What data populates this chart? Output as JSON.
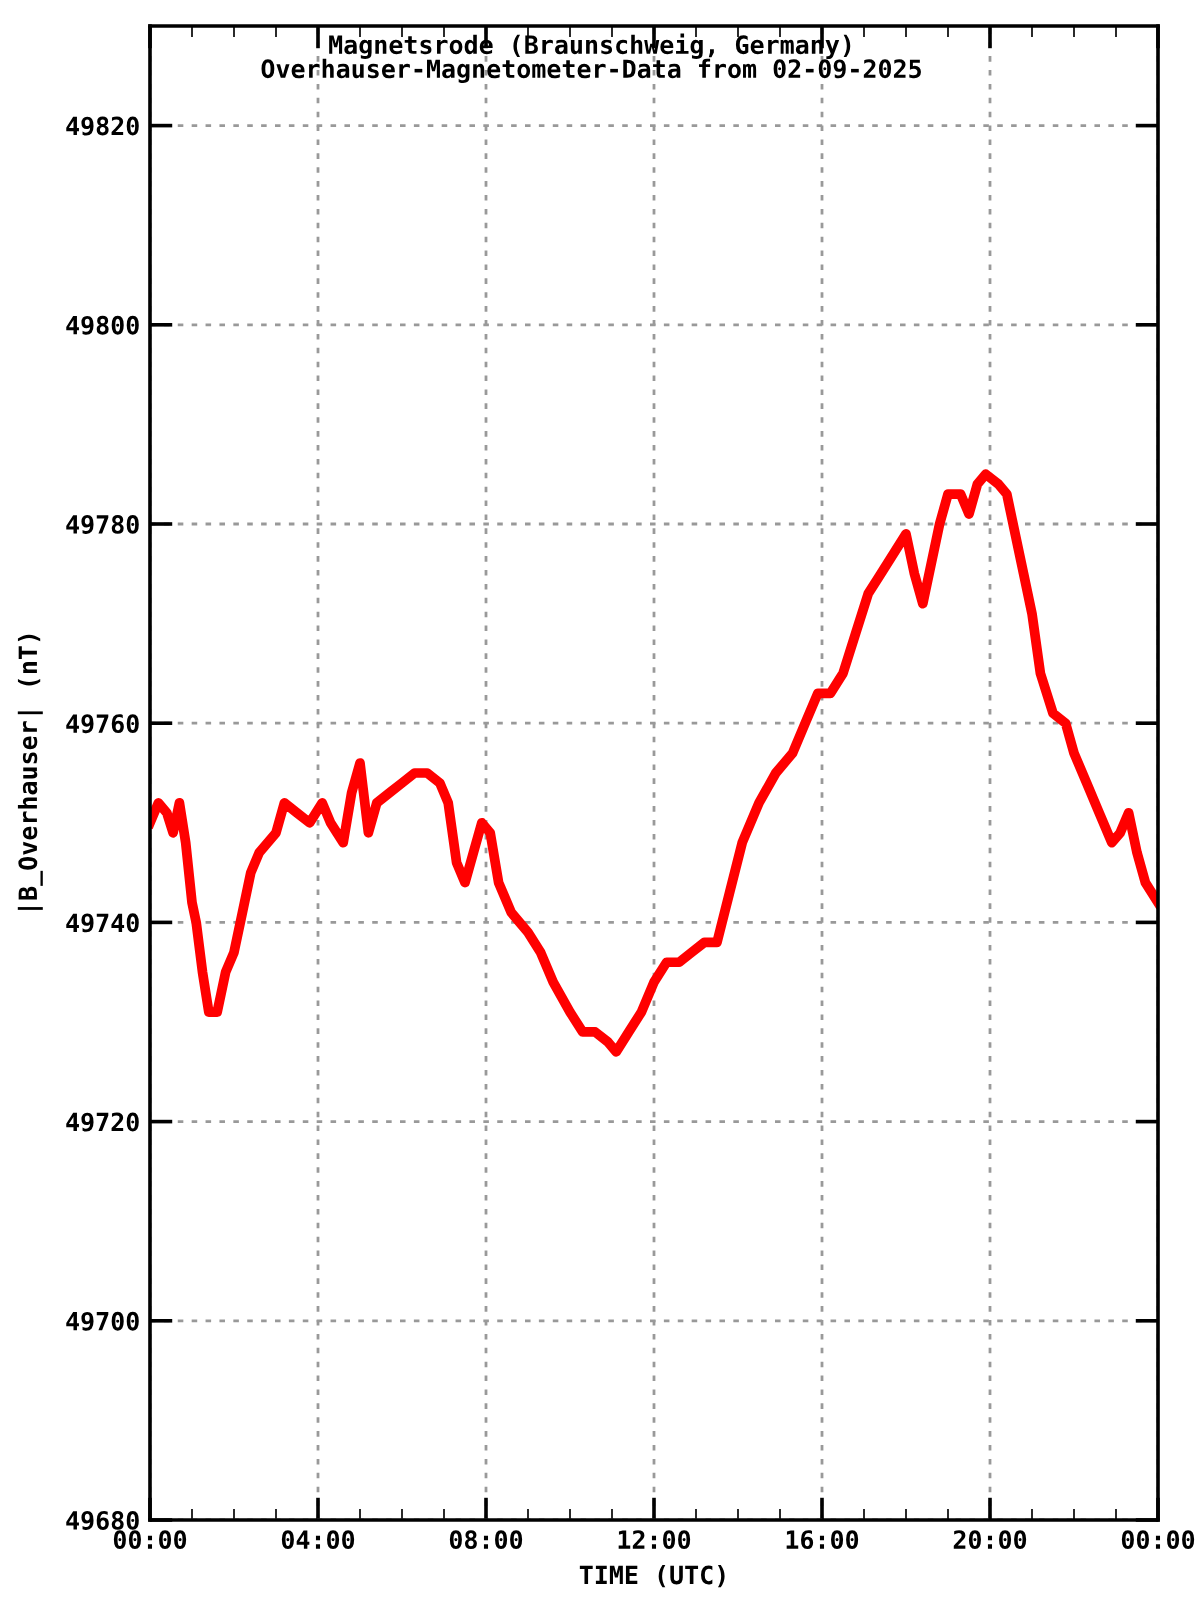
{
  "chart_data": {
    "type": "line",
    "title": "Magnetsrode (Braunschweig, Germany)",
    "subtitle": "Overhauser-Magnetometer-Data from 02-09-2025",
    "xlabel": "TIME (UTC)",
    "ylabel": "|B_Overhauser| (nT)",
    "x": [
      0,
      0.2,
      0.4,
      0.55,
      0.7,
      0.85,
      1.0,
      1.1,
      1.25,
      1.4,
      1.6,
      1.8,
      2.0,
      2.2,
      2.4,
      2.6,
      3.0,
      3.2,
      3.5,
      3.8,
      4.1,
      4.3,
      4.6,
      4.8,
      5.0,
      5.2,
      5.4,
      5.7,
      6.0,
      6.3,
      6.6,
      6.9,
      7.1,
      7.3,
      7.5,
      7.7,
      7.9,
      8.1,
      8.3,
      8.6,
      9.0,
      9.3,
      9.6,
      10.0,
      10.3,
      10.6,
      10.9,
      11.1,
      11.4,
      11.7,
      12.0,
      12.3,
      12.6,
      12.9,
      13.2,
      13.5,
      13.8,
      14.1,
      14.5,
      14.9,
      15.3,
      15.6,
      15.9,
      16.2,
      16.5,
      16.8,
      17.1,
      17.4,
      17.7,
      18.0,
      18.2,
      18.4,
      18.6,
      18.8,
      19.0,
      19.3,
      19.5,
      19.7,
      19.9,
      20.2,
      20.4,
      20.6,
      20.8,
      21.0,
      21.2,
      21.5,
      21.8,
      22.0,
      22.3,
      22.6,
      22.9,
      23.1,
      23.3,
      23.5,
      23.7,
      24.0
    ],
    "series": [
      {
        "color": "#ff0000",
        "values": [
          49750,
          49752,
          49751,
          49749,
          49752,
          49748,
          49742,
          49740,
          49735,
          49731,
          49731,
          49735,
          49737,
          49741,
          49745,
          49747,
          49749,
          49752,
          49751,
          49750,
          49752,
          49750,
          49748,
          49753,
          49756,
          49749,
          49752,
          49753,
          49754,
          49755,
          49755,
          49754,
          49752,
          49746,
          49744,
          49747,
          49750,
          49749,
          49744,
          49741,
          49739,
          49737,
          49734,
          49731,
          49729,
          49729,
          49728,
          49727,
          49729,
          49731,
          49734,
          49736,
          49736,
          49737,
          49738,
          49738,
          49743,
          49748,
          49752,
          49755,
          49757,
          49760,
          49763,
          49763,
          49765,
          49769,
          49773,
          49775,
          49777,
          49779,
          49775,
          49772,
          49776,
          49780,
          49783,
          49783,
          49781,
          49784,
          49785,
          49784,
          49783,
          49779,
          49775,
          49771,
          49765,
          49761,
          49760,
          49757,
          49754,
          49751,
          49748,
          49749,
          49751,
          49747,
          49744,
          49742
        ]
      }
    ],
    "xlim": [
      0,
      24
    ],
    "xticks": [
      {
        "value": 0,
        "label": "00:00"
      },
      {
        "value": 4,
        "label": "04:00"
      },
      {
        "value": 8,
        "label": "08:00"
      },
      {
        "value": 12,
        "label": "12:00"
      },
      {
        "value": 16,
        "label": "16:00"
      },
      {
        "value": 20,
        "label": "20:00"
      },
      {
        "value": 24,
        "label": "00:00"
      }
    ],
    "ylim": [
      49680,
      49830
    ],
    "yticks": [
      49680,
      49700,
      49720,
      49740,
      49760,
      49780,
      49800,
      49820
    ],
    "grid": true,
    "line_style": "solid",
    "marker": "none"
  }
}
